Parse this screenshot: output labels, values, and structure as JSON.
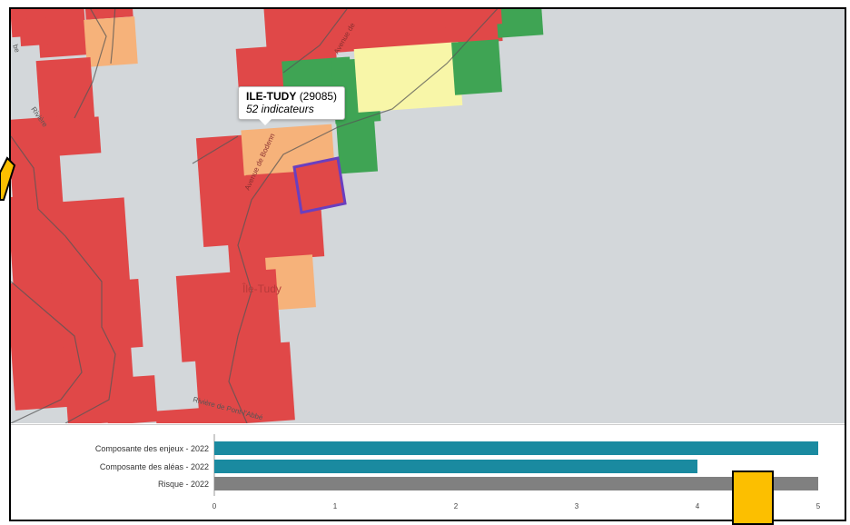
{
  "map": {
    "tooltip": {
      "commune_name": "ILE-TUDY",
      "commune_code": "(29085)",
      "indicators": "52 indicateurs"
    },
    "labels": {
      "place": "Île-Tudy",
      "road_right": "Avenue de ",
      "road_mid": "Avenue de Bodenn",
      "river_left": "Rivière",
      "river_bottom": "Rivière de Pont-l'Abbé",
      "corner": "be"
    },
    "colors": {
      "background": "#d3d7da",
      "red": "#e04848",
      "orange": "#f6b27a",
      "light_yellow": "#f8f6a8",
      "green": "#3fa454",
      "selection": "#6a3fbf"
    }
  },
  "chart_data": {
    "type": "bar",
    "orientation": "horizontal",
    "categories": [
      "Composante des enjeux - 2022",
      "Composante des aléas - 2022",
      "Risque - 2022"
    ],
    "values": [
      5,
      4,
      5
    ],
    "colors": [
      "#1a8aa0",
      "#1a8aa0",
      "#808080"
    ],
    "xlim": [
      0,
      5
    ],
    "xticks": [
      "0",
      "1",
      "2",
      "3",
      "4",
      "5"
    ],
    "title": "",
    "xlabel": "",
    "ylabel": ""
  }
}
